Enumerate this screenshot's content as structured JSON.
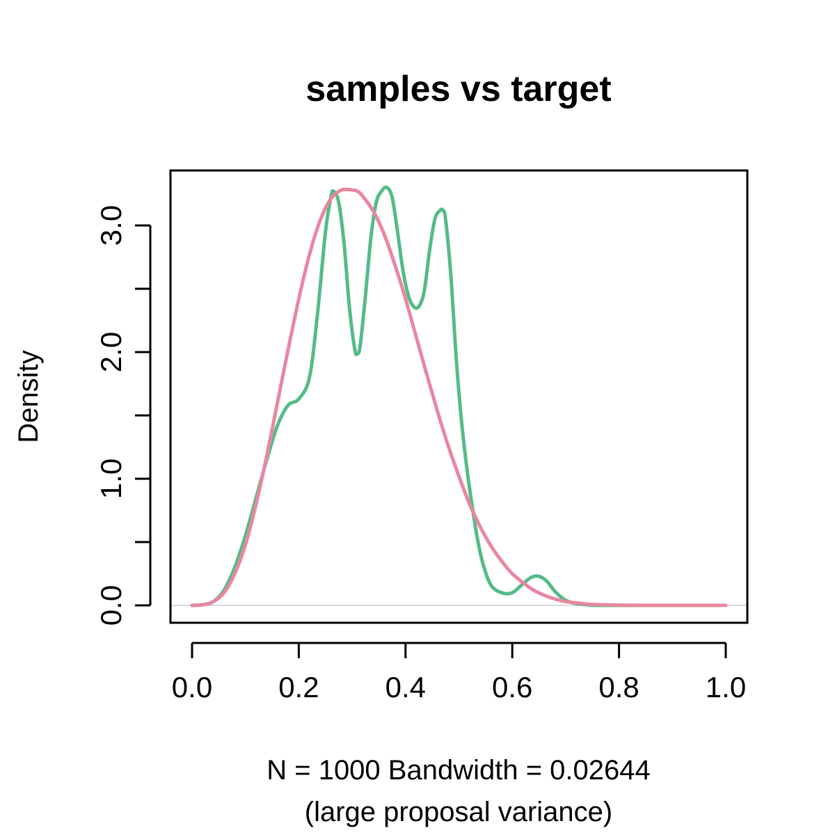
{
  "chart_data": {
    "type": "line",
    "title": "samples vs target",
    "xlabel_line1": "N = 1000   Bandwidth = 0.02644",
    "xlabel_line2": "(large proposal variance)",
    "ylabel": "Density",
    "xlim": [
      0.0,
      1.0
    ],
    "ylim": [
      -0.07,
      3.42
    ],
    "x_ticks": [
      0.0,
      0.2,
      0.4,
      0.6,
      0.8,
      1.0
    ],
    "x_tick_labels": [
      "0.0",
      "0.2",
      "0.4",
      "0.6",
      "0.8",
      "1.0"
    ],
    "y_ticks": [
      0.0,
      0.5,
      1.0,
      1.5,
      2.0,
      2.5,
      3.0
    ],
    "y_tick_labels": [
      "0.0",
      "",
      "1.0",
      "",
      "2.0",
      "",
      "3.0"
    ],
    "zero_line": true,
    "zero_line_color": "#cccccc",
    "series": [
      {
        "color": "#55bb88",
        "x": [
          0.0,
          0.02,
          0.04,
          0.06,
          0.08,
          0.1,
          0.12,
          0.14,
          0.16,
          0.18,
          0.2,
          0.22,
          0.235,
          0.25,
          0.26,
          0.265,
          0.275,
          0.285,
          0.295,
          0.305,
          0.31,
          0.315,
          0.325,
          0.335,
          0.345,
          0.355,
          0.365,
          0.375,
          0.385,
          0.395,
          0.405,
          0.415,
          0.425,
          0.435,
          0.445,
          0.455,
          0.465,
          0.47,
          0.475,
          0.485,
          0.495,
          0.505,
          0.515,
          0.525,
          0.535,
          0.545,
          0.56,
          0.58,
          0.6,
          0.62,
          0.635,
          0.65,
          0.665,
          0.68,
          0.7,
          0.72,
          0.74,
          0.76,
          0.8,
          1.0
        ],
        "y": [
          0.0,
          0.005,
          0.03,
          0.12,
          0.3,
          0.55,
          0.85,
          1.15,
          1.42,
          1.58,
          1.63,
          1.8,
          2.3,
          2.95,
          3.22,
          3.27,
          3.18,
          2.85,
          2.35,
          2.02,
          1.99,
          2.05,
          2.45,
          2.9,
          3.18,
          3.27,
          3.3,
          3.22,
          2.95,
          2.65,
          2.45,
          2.36,
          2.36,
          2.48,
          2.8,
          3.05,
          3.12,
          3.12,
          3.05,
          2.6,
          1.95,
          1.45,
          1.08,
          0.78,
          0.52,
          0.33,
          0.16,
          0.1,
          0.1,
          0.17,
          0.22,
          0.23,
          0.19,
          0.11,
          0.04,
          0.015,
          0.005,
          0.0,
          0.0,
          0.0
        ]
      },
      {
        "color": "#e8879f",
        "x": [
          0.0,
          0.02,
          0.04,
          0.06,
          0.08,
          0.1,
          0.12,
          0.14,
          0.16,
          0.18,
          0.2,
          0.22,
          0.24,
          0.26,
          0.28,
          0.3,
          0.31,
          0.32,
          0.34,
          0.36,
          0.38,
          0.4,
          0.42,
          0.44,
          0.46,
          0.48,
          0.5,
          0.52,
          0.54,
          0.56,
          0.58,
          0.6,
          0.62,
          0.64,
          0.66,
          0.68,
          0.7,
          0.72,
          0.74,
          0.76,
          0.8,
          0.85,
          0.9,
          1.0
        ],
        "y": [
          0.0,
          0.004,
          0.03,
          0.1,
          0.25,
          0.48,
          0.8,
          1.18,
          1.6,
          2.02,
          2.42,
          2.77,
          3.04,
          3.21,
          3.28,
          3.28,
          3.27,
          3.23,
          3.11,
          2.93,
          2.69,
          2.42,
          2.12,
          1.82,
          1.53,
          1.26,
          1.02,
          0.8,
          0.62,
          0.47,
          0.35,
          0.25,
          0.18,
          0.12,
          0.08,
          0.05,
          0.03,
          0.02,
          0.01,
          0.006,
          0.002,
          0.0,
          0.0,
          0.0
        ]
      }
    ]
  }
}
